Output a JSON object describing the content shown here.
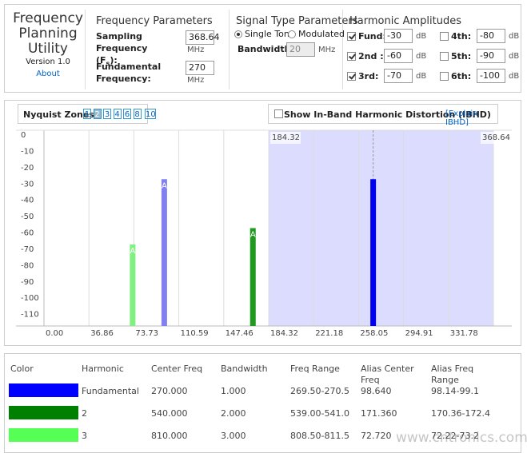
{
  "app": {
    "title": "Frequency Planning Utility",
    "version": "Version 1.0",
    "about": "About"
  },
  "frequency_parameters": {
    "title": "Frequency Parameters",
    "sampling_label": "Sampling Frequency",
    "sampling_symbol": "(F",
    "sampling_sub": "s",
    "sampling_tail": "):",
    "sampling_value": 368.64,
    "sampling_unit": "MHz",
    "fundamental_label": "Fundamental Frequency:",
    "fundamental_value": 270,
    "fundamental_unit": "MHz"
  },
  "signal_type": {
    "title": "Signal Type Parameters",
    "options": [
      {
        "label": "Single Tone",
        "checked": true
      },
      {
        "label": "Modulated",
        "checked": false
      }
    ],
    "bandwidth_label": "Bandwidth:",
    "bandwidth_value": 20,
    "bandwidth_unit": "MHz"
  },
  "harmonic_amplitudes": {
    "title": "Harmonic Amplitudes",
    "items": [
      {
        "label": "Fund:",
        "value": -30,
        "unit": "dB",
        "checked": true
      },
      {
        "label": "2nd :",
        "value": -60,
        "unit": "dB",
        "checked": true
      },
      {
        "label": "3rd:",
        "value": -70,
        "unit": "dB",
        "checked": true
      },
      {
        "label": "4th:",
        "value": -80,
        "unit": "dB",
        "checked": false
      },
      {
        "label": "5th:",
        "value": -90,
        "unit": "dB",
        "checked": false
      },
      {
        "label": "6th:",
        "value": -100,
        "unit": "dB",
        "checked": false
      }
    ]
  },
  "nyquist": {
    "label": "Nyquist Zones:",
    "zones": [
      1,
      2,
      3,
      4,
      6,
      8,
      10
    ],
    "selected_index": 1
  },
  "ibhd": {
    "label": "Show In-Band Harmonic Distortion (IBHD)",
    "link": "[Explain IBHD]",
    "checked": false
  },
  "chart_data": {
    "type": "bar",
    "x": [
      72.72,
      98.64,
      171.36,
      270
    ],
    "values": [
      -70,
      -30,
      -60,
      -30
    ],
    "colors": [
      "#80f080",
      "#8080f0",
      "#1f9a1f",
      "#0000ee"
    ],
    "bar_labels": [
      "A",
      "A",
      "A",
      null
    ],
    "xlim": [
      0,
      368.64
    ],
    "ylim": [
      -120,
      0
    ],
    "xticks": [
      {
        "value": 0,
        "label": "0.00"
      },
      36.86,
      73.73,
      110.59,
      147.46,
      184.32,
      221.18,
      258.05,
      294.91,
      331.78
    ],
    "yticks": [
      0,
      -10,
      -20,
      -30,
      -40,
      -50,
      -60,
      -70,
      -80,
      -90,
      -100,
      -110
    ],
    "shaded_region": [
      184.32,
      368.64
    ],
    "shade_color": "#dcdcff",
    "marker_x": 270,
    "grid": true
  },
  "table": {
    "headers": [
      "Color",
      "Harmonic",
      "Center Freq",
      "Bandwidth",
      "Freq Range",
      "Alias Center Freq",
      "Alias Freq Range"
    ],
    "rows": [
      {
        "color": "#0000ff",
        "cells": [
          "Fundamental",
          "270.000",
          "1.000",
          "269.50-270.5",
          "98.640",
          "98.14-99.1"
        ]
      },
      {
        "color": "#008000",
        "cells": [
          "2",
          "540.000",
          "2.000",
          "539.00-541.0",
          "171.360",
          "170.36-172.4"
        ]
      },
      {
        "color": "#55ff55",
        "cells": [
          "3",
          "810.000",
          "3.000",
          "808.50-811.5",
          "72.720",
          "72.22-73.2"
        ]
      }
    ]
  },
  "watermark": "www.cntronics.com"
}
